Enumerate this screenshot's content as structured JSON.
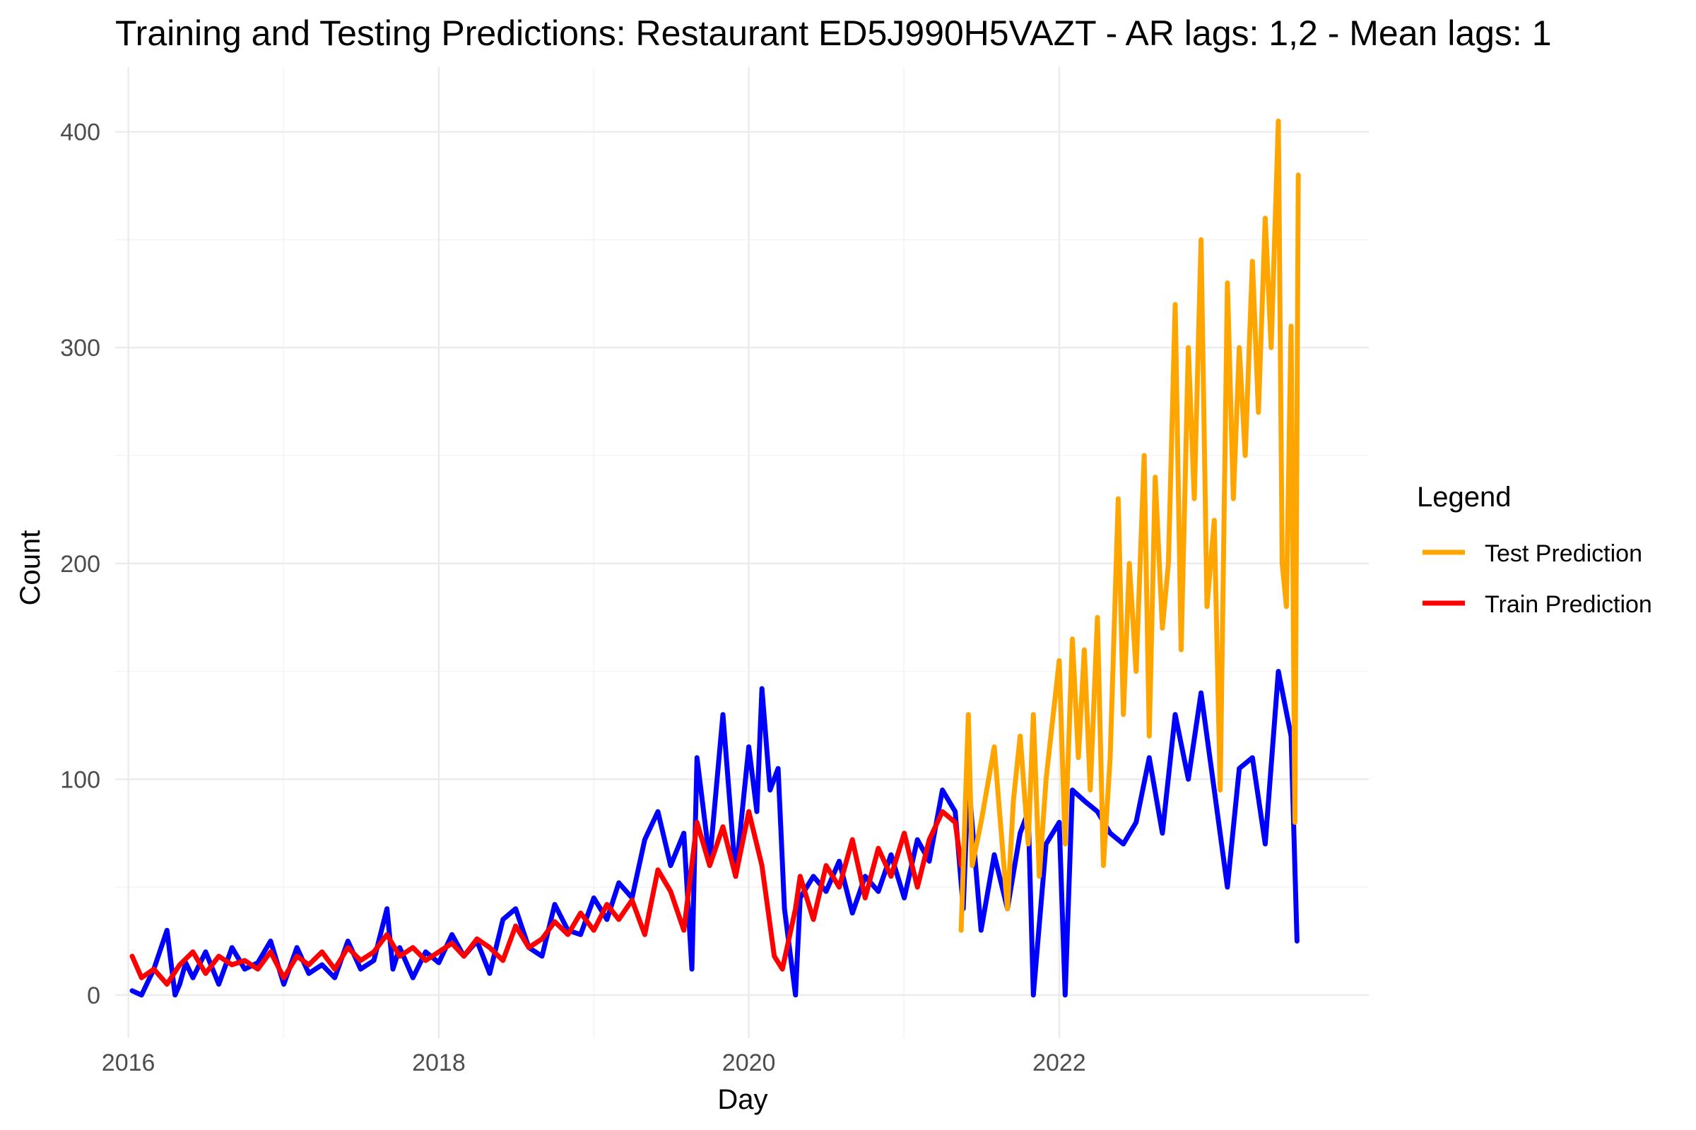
{
  "chart_data": {
    "type": "line",
    "title": "Training and Testing Predictions: Restaurant ED5J990H5VAZT - AR lags: 1,2 - Mean lags: 1",
    "xlabel": "Day",
    "ylabel": "Count",
    "x_type": "date",
    "xlim": [
      "2015-12-01",
      "2023-12-31"
    ],
    "ylim": [
      -20,
      430
    ],
    "x_ticks": [
      {
        "value": "2016-01-01",
        "label": "2016"
      },
      {
        "value": "2018-01-01",
        "label": "2018"
      },
      {
        "value": "2020-01-01",
        "label": "2020"
      },
      {
        "value": "2022-01-01",
        "label": "2022"
      }
    ],
    "y_ticks": [
      0,
      100,
      200,
      300,
      400
    ],
    "grid": true,
    "legend": {
      "title": "Legend",
      "position": "right",
      "entries": [
        {
          "label": "Test Prediction",
          "color": "#FFA500"
        },
        {
          "label": "Train Prediction",
          "color": "#FF0000"
        }
      ]
    },
    "series": [
      {
        "color": "#0000FF",
        "x": [
          "2016-01-10",
          "2016-02-01",
          "2016-03-01",
          "2016-04-01",
          "2016-04-20",
          "2016-05-01",
          "2016-05-15",
          "2016-06-01",
          "2016-07-01",
          "2016-08-01",
          "2016-09-01",
          "2016-10-01",
          "2016-11-01",
          "2016-12-01",
          "2017-01-01",
          "2017-02-01",
          "2017-03-01",
          "2017-04-01",
          "2017-05-01",
          "2017-06-01",
          "2017-07-01",
          "2017-08-01",
          "2017-09-01",
          "2017-09-15",
          "2017-10-01",
          "2017-11-01",
          "2017-12-01",
          "2018-01-01",
          "2018-02-01",
          "2018-03-01",
          "2018-04-01",
          "2018-05-01",
          "2018-06-01",
          "2018-07-01",
          "2018-08-01",
          "2018-09-01",
          "2018-10-01",
          "2018-11-01",
          "2018-12-01",
          "2019-01-01",
          "2019-02-01",
          "2019-03-01",
          "2019-04-01",
          "2019-05-01",
          "2019-06-01",
          "2019-07-01",
          "2019-08-01",
          "2019-08-20",
          "2019-09-01",
          "2019-10-01",
          "2019-11-01",
          "2019-12-01",
          "2020-01-01",
          "2020-01-20",
          "2020-02-01",
          "2020-02-20",
          "2020-03-10",
          "2020-03-25",
          "2020-04-20",
          "2020-05-01",
          "2020-06-01",
          "2020-07-01",
          "2020-08-01",
          "2020-09-01",
          "2020-10-01",
          "2020-11-01",
          "2020-12-01",
          "2021-01-01",
          "2021-02-01",
          "2021-03-01",
          "2021-04-01",
          "2021-05-01",
          "2021-05-20",
          "2021-06-01",
          "2021-07-01",
          "2021-08-01",
          "2021-09-01",
          "2021-10-01",
          "2021-10-20",
          "2021-11-01",
          "2021-12-01",
          "2022-01-01",
          "2022-01-15",
          "2022-02-01",
          "2022-03-01",
          "2022-04-01",
          "2022-05-01",
          "2022-06-01",
          "2022-07-01",
          "2022-08-01",
          "2022-09-01",
          "2022-10-01",
          "2022-11-01",
          "2022-12-01",
          "2023-01-01",
          "2023-02-01",
          "2023-03-01",
          "2023-04-01",
          "2023-05-01",
          "2023-06-01",
          "2023-07-01",
          "2023-07-15"
        ],
        "values": [
          2,
          0,
          12,
          30,
          0,
          5,
          15,
          8,
          20,
          5,
          22,
          12,
          15,
          25,
          5,
          22,
          10,
          14,
          8,
          25,
          12,
          16,
          40,
          12,
          22,
          8,
          20,
          15,
          28,
          18,
          25,
          10,
          35,
          40,
          22,
          18,
          42,
          30,
          28,
          45,
          35,
          52,
          45,
          72,
          85,
          60,
          75,
          12,
          110,
          62,
          130,
          55,
          115,
          85,
          142,
          95,
          105,
          40,
          0,
          45,
          55,
          48,
          62,
          38,
          55,
          48,
          65,
          45,
          72,
          62,
          95,
          85,
          40,
          100,
          30,
          65,
          40,
          75,
          85,
          0,
          70,
          80,
          0,
          95,
          90,
          85,
          75,
          70,
          80,
          110,
          75,
          130,
          100,
          140,
          95,
          50,
          105,
          110,
          70,
          150,
          120,
          25
        ]
      },
      {
        "name": "Train Prediction",
        "color": "#FF0000",
        "x": [
          "2016-01-10",
          "2016-02-01",
          "2016-03-01",
          "2016-04-01",
          "2016-05-01",
          "2016-06-01",
          "2016-07-01",
          "2016-08-01",
          "2016-09-01",
          "2016-10-01",
          "2016-11-01",
          "2016-12-01",
          "2017-01-01",
          "2017-02-01",
          "2017-03-01",
          "2017-04-01",
          "2017-05-01",
          "2017-06-01",
          "2017-07-01",
          "2017-08-01",
          "2017-09-01",
          "2017-10-01",
          "2017-11-01",
          "2017-12-01",
          "2018-01-01",
          "2018-02-01",
          "2018-03-01",
          "2018-04-01",
          "2018-05-01",
          "2018-06-01",
          "2018-07-01",
          "2018-08-01",
          "2018-09-01",
          "2018-10-01",
          "2018-11-01",
          "2018-12-01",
          "2019-01-01",
          "2019-02-01",
          "2019-03-01",
          "2019-04-01",
          "2019-05-01",
          "2019-06-01",
          "2019-07-01",
          "2019-08-01",
          "2019-09-01",
          "2019-10-01",
          "2019-11-01",
          "2019-12-01",
          "2020-01-01",
          "2020-02-01",
          "2020-03-01",
          "2020-03-20",
          "2020-04-20",
          "2020-05-01",
          "2020-06-01",
          "2020-07-01",
          "2020-08-01",
          "2020-09-01",
          "2020-10-01",
          "2020-11-01",
          "2020-12-01",
          "2021-01-01",
          "2021-02-01",
          "2021-03-01",
          "2021-04-01",
          "2021-05-01",
          "2021-05-15"
        ],
        "values": [
          18,
          8,
          12,
          5,
          14,
          20,
          10,
          18,
          14,
          16,
          12,
          20,
          8,
          18,
          14,
          20,
          12,
          22,
          16,
          20,
          28,
          18,
          22,
          16,
          20,
          24,
          18,
          26,
          22,
          16,
          32,
          22,
          26,
          34,
          28,
          38,
          30,
          42,
          35,
          44,
          28,
          58,
          48,
          30,
          80,
          60,
          78,
          55,
          85,
          60,
          18,
          12,
          40,
          55,
          35,
          60,
          50,
          72,
          45,
          68,
          55,
          75,
          50,
          72,
          85,
          80,
          60
        ]
      },
      {
        "name": "Test Prediction",
        "color": "#FFA500",
        "x": [
          "2021-05-15",
          "2021-06-01",
          "2021-06-10",
          "2021-07-01",
          "2021-08-01",
          "2021-09-01",
          "2021-09-15",
          "2021-10-01",
          "2021-10-20",
          "2021-11-01",
          "2021-11-15",
          "2021-12-01",
          "2022-01-01",
          "2022-01-15",
          "2022-02-01",
          "2022-02-15",
          "2022-03-01",
          "2022-03-15",
          "2022-04-01",
          "2022-04-15",
          "2022-05-01",
          "2022-05-20",
          "2022-06-01",
          "2022-06-15",
          "2022-07-01",
          "2022-07-20",
          "2022-08-01",
          "2022-08-15",
          "2022-09-01",
          "2022-09-15",
          "2022-10-01",
          "2022-10-15",
          "2022-11-01",
          "2022-11-15",
          "2022-12-01",
          "2022-12-15",
          "2023-01-01",
          "2023-01-15",
          "2023-02-01",
          "2023-02-15",
          "2023-03-01",
          "2023-03-15",
          "2023-04-01",
          "2023-04-15",
          "2023-05-01",
          "2023-05-15",
          "2023-06-01",
          "2023-06-10",
          "2023-06-20",
          "2023-07-01",
          "2023-07-10",
          "2023-07-18"
        ],
        "values": [
          30,
          130,
          60,
          80,
          115,
          40,
          90,
          120,
          70,
          130,
          55,
          100,
          155,
          70,
          165,
          110,
          160,
          95,
          175,
          60,
          110,
          230,
          130,
          200,
          150,
          250,
          120,
          240,
          170,
          200,
          320,
          160,
          300,
          230,
          350,
          180,
          220,
          95,
          330,
          230,
          300,
          250,
          340,
          270,
          360,
          300,
          405,
          200,
          180,
          310,
          80,
          380
        ]
      }
    ]
  }
}
